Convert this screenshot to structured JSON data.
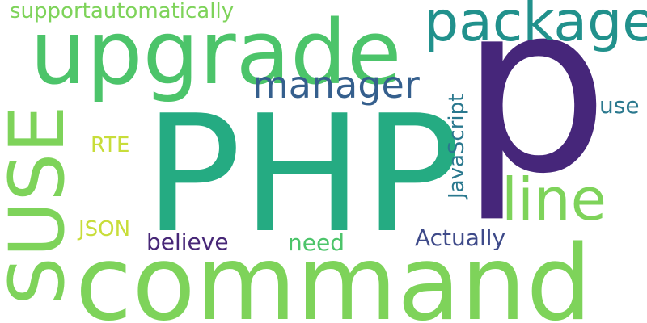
{
  "colors": {
    "background": "#ffffff",
    "yellow_green": "#c8dd3a",
    "light_green": "#7ed35a",
    "green": "#4cc46a",
    "teal_green": "#25ab82",
    "teal": "#21918c",
    "teal_blue": "#2a788e",
    "blue": "#355f8d",
    "indigo": "#3e4a89",
    "purple": "#472777",
    "deep_purple": "#46267a"
  },
  "words": [
    {
      "key": "p",
      "text": "p"
    },
    {
      "key": "php",
      "text": "PHP"
    },
    {
      "key": "command",
      "text": "command"
    },
    {
      "key": "upgrade",
      "text": "upgrade"
    },
    {
      "key": "suse",
      "text": "SUSE"
    },
    {
      "key": "package",
      "text": "package"
    },
    {
      "key": "line",
      "text": "line"
    },
    {
      "key": "manager",
      "text": "manager"
    },
    {
      "key": "javascript",
      "text": "JavaScript"
    },
    {
      "key": "supportautomatically",
      "text": "supportautomatically"
    },
    {
      "key": "actually",
      "text": "Actually"
    },
    {
      "key": "believe",
      "text": "believe"
    },
    {
      "key": "need",
      "text": "need"
    },
    {
      "key": "use",
      "text": "use"
    },
    {
      "key": "json",
      "text": "JSON"
    },
    {
      "key": "rte",
      "text": "RTE"
    }
  ]
}
